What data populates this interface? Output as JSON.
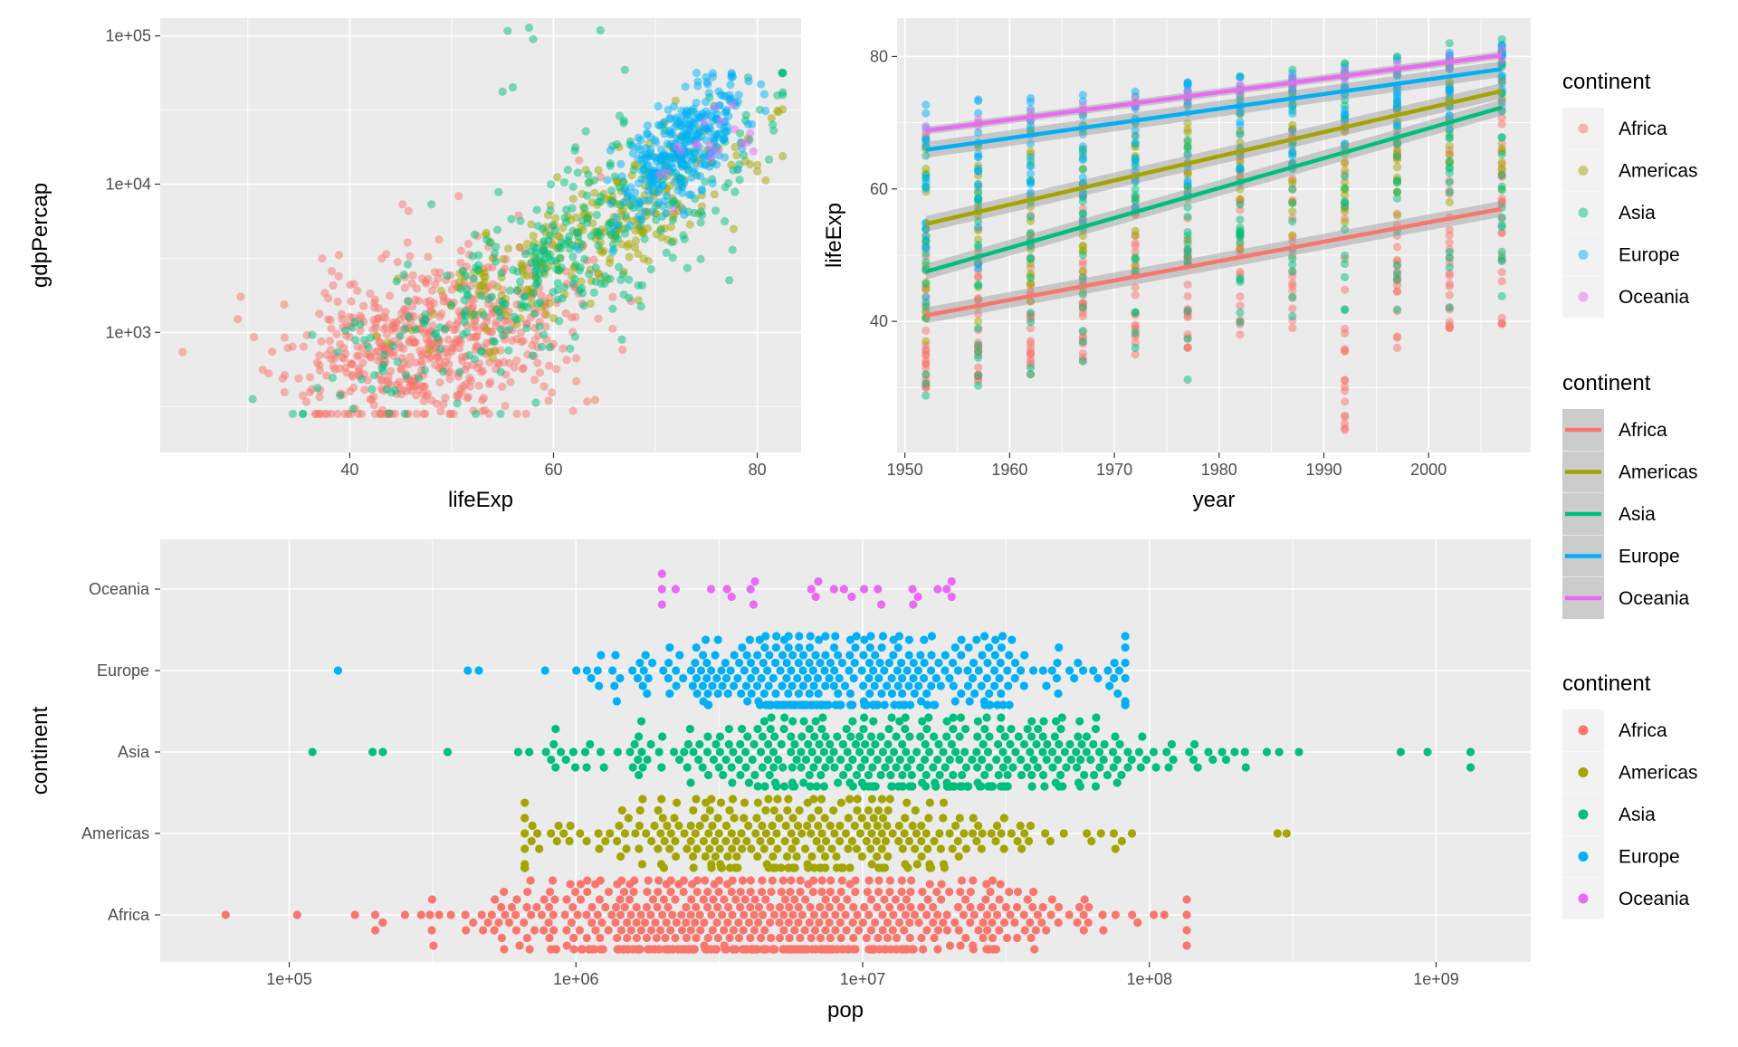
{
  "colors": {
    "Africa": "#F8766D",
    "Americas": "#A3A500",
    "Asia": "#00BF7D",
    "Europe": "#00B0F6",
    "Oceania": "#E76BF3",
    "panel_bg": "#EBEBEB",
    "grid": "#FFFFFF",
    "tick_text": "#4D4D4D"
  },
  "continents": [
    "Africa",
    "Americas",
    "Asia",
    "Europe",
    "Oceania"
  ],
  "legends": [
    {
      "title": "continent",
      "key": "point-alpha",
      "items": [
        "Africa",
        "Americas",
        "Asia",
        "Europe",
        "Oceania"
      ]
    },
    {
      "title": "continent",
      "key": "line",
      "items": [
        "Africa",
        "Americas",
        "Asia",
        "Europe",
        "Oceania"
      ]
    },
    {
      "title": "continent",
      "key": "point",
      "items": [
        "Africa",
        "Americas",
        "Asia",
        "Europe",
        "Oceania"
      ]
    }
  ],
  "chart_data": [
    {
      "type": "scatter",
      "xlabel": "lifeExp",
      "ylabel": "gdpPercap",
      "xlim": [
        21.4,
        84.3
      ],
      "ylim_log10": [
        2.19,
        5.12
      ],
      "y_scale": "log10",
      "x_ticks": [
        {
          "value": 40,
          "label": "40"
        },
        {
          "value": 60,
          "label": "60"
        },
        {
          "value": 80,
          "label": "80"
        }
      ],
      "y_ticks": [
        {
          "value": 1000,
          "label": "1e+03"
        },
        {
          "value": 10000,
          "label": "1e+04"
        },
        {
          "value": 100000,
          "label": "1e+05"
        }
      ],
      "grid": true,
      "point_alpha": 0.5,
      "series": [
        {
          "name": "Africa",
          "center_lifeExp": 48,
          "center_gdp_log10": 3.0,
          "n": 600
        },
        {
          "name": "Americas",
          "center_lifeExp": 64,
          "center_gdp_log10": 3.6,
          "n": 280
        },
        {
          "name": "Asia",
          "center_lifeExp": 60,
          "center_gdp_log10": 3.4,
          "n": 380
        },
        {
          "name": "Europe",
          "center_lifeExp": 72,
          "center_gdp_log10": 4.1,
          "n": 330
        },
        {
          "name": "Oceania",
          "center_lifeExp": 74,
          "center_gdp_log10": 4.2,
          "n": 20
        }
      ],
      "outliers": [
        {
          "continent": "Asia",
          "lifeExp": 55.5,
          "gdpPercap": 108000
        },
        {
          "continent": "Asia",
          "lifeExp": 57.6,
          "gdpPercap": 113500
        },
        {
          "continent": "Asia",
          "lifeExp": 58.0,
          "gdpPercap": 95000
        },
        {
          "continent": "Asia",
          "lifeExp": 64.6,
          "gdpPercap": 109000
        },
        {
          "continent": "Asia",
          "lifeExp": 67.0,
          "gdpPercap": 59000
        },
        {
          "continent": "Asia",
          "lifeExp": 56.0,
          "gdpPercap": 45000
        },
        {
          "continent": "Asia",
          "lifeExp": 55.0,
          "gdpPercap": 42000
        },
        {
          "continent": "Africa",
          "lifeExp": 23.6,
          "gdpPercap": 737
        }
      ]
    },
    {
      "type": "line",
      "xlabel": "year",
      "ylabel": "lifeExp",
      "xlim": [
        1949.25,
        2009.75
      ],
      "ylim": [
        20.2,
        85.8
      ],
      "x_ticks": [
        {
          "value": 1950,
          "label": "1950"
        },
        {
          "value": 1960,
          "label": "1960"
        },
        {
          "value": 1970,
          "label": "1970"
        },
        {
          "value": 1980,
          "label": "1980"
        },
        {
          "value": 1990,
          "label": "1990"
        },
        {
          "value": 2000,
          "label": "2000"
        }
      ],
      "y_ticks": [
        {
          "value": 40,
          "label": "40"
        },
        {
          "value": 60,
          "label": "60"
        },
        {
          "value": 80,
          "label": "80"
        }
      ],
      "x_points": [
        1952,
        1957,
        1962,
        1967,
        1972,
        1977,
        1982,
        1987,
        1992,
        1997,
        2002,
        2007
      ],
      "grid": true,
      "point_alpha": 0.5,
      "series": [
        {
          "name": "Africa",
          "fit": [
            [
              1952,
              40.9
            ],
            [
              2007,
              57.0
            ]
          ],
          "range": [
            [
              30,
              52
            ],
            [
              31,
              54
            ],
            [
              32,
              56
            ],
            [
              34,
              59
            ],
            [
              35,
              62
            ],
            [
              36,
              64
            ],
            [
              38,
              66
            ],
            [
              39,
              69
            ],
            [
              23.6,
              70
            ],
            [
              36,
              72
            ],
            [
              39,
              75
            ],
            [
              39.6,
              76.4
            ]
          ]
        },
        {
          "name": "Americas",
          "fit": [
            [
              1952,
              54.7
            ],
            [
              2007,
              74.8
            ]
          ],
          "range": [
            [
              37,
              68
            ],
            [
              40,
              70
            ],
            [
              43,
              71
            ],
            [
              45,
              72
            ],
            [
              47,
              73
            ],
            [
              49,
              74
            ],
            [
              51,
              75
            ],
            [
              53,
              76
            ],
            [
              55,
              77
            ],
            [
              56,
              78
            ],
            [
              58,
              79
            ],
            [
              60,
              80.6
            ]
          ]
        },
        {
          "name": "Asia",
          "fit": [
            [
              1952,
              47.5
            ],
            [
              2007,
              72.3
            ]
          ],
          "range": [
            [
              28.8,
              65
            ],
            [
              30.3,
              67
            ],
            [
              32,
              69
            ],
            [
              34,
              71
            ],
            [
              36,
              74
            ],
            [
              31.2,
              76
            ],
            [
              39.9,
              77
            ],
            [
              40.8,
              78
            ],
            [
              41.7,
              79
            ],
            [
              41.8,
              80
            ],
            [
              42.1,
              82
            ],
            [
              43.8,
              82.6
            ]
          ]
        },
        {
          "name": "Europe",
          "fit": [
            [
              1952,
              65.9
            ],
            [
              2007,
              78.1
            ]
          ],
          "range": [
            [
              43.6,
              72.7
            ],
            [
              48,
              73.5
            ],
            [
              52,
              73.7
            ],
            [
              54,
              74.2
            ],
            [
              57,
              74.7
            ],
            [
              59,
              76.1
            ],
            [
              61,
              76.9
            ],
            [
              63,
              77.4
            ],
            [
              66,
              78.3
            ],
            [
              68,
              79.4
            ],
            [
              69,
              80.6
            ],
            [
              71.8,
              81.8
            ]
          ]
        },
        {
          "name": "Oceania",
          "fit": [
            [
              1952,
              68.8
            ],
            [
              2007,
              80.2
            ]
          ]
        }
      ]
    },
    {
      "type": "beeswarm",
      "xlabel": "pop",
      "ylabel": "continent",
      "x_scale": "log10",
      "xlim_log10": [
        4.55,
        9.33
      ],
      "categories": [
        "Africa",
        "Americas",
        "Asia",
        "Europe",
        "Oceania"
      ],
      "x_ticks": [
        {
          "value": 100000,
          "label": "1e+05"
        },
        {
          "value": 1000000,
          "label": "1e+06"
        },
        {
          "value": 10000000,
          "label": "1e+07"
        },
        {
          "value": 100000000,
          "label": "1e+08"
        },
        {
          "value": 1000000000,
          "label": "1e+09"
        }
      ],
      "grid": true,
      "series": [
        {
          "name": "Africa",
          "pop_range": [
            60011,
            135031164
          ],
          "median_pop": 4579311,
          "n": 624
        },
        {
          "name": "Americas",
          "pop_range": [
            662850,
            301139947
          ],
          "median_pop": 6227510,
          "n": 300
        },
        {
          "name": "Asia",
          "pop_range": [
            120447,
            1318683096
          ],
          "median_pop": 14530831,
          "n": 396
        },
        {
          "name": "Europe",
          "pop_range": [
            147962,
            82400996
          ],
          "median_pop": 8551125,
          "n": 360
        },
        {
          "name": "Oceania",
          "pop_range": [
            1994794,
            20434176
          ],
          "median_pop": 6403492,
          "n": 24
        }
      ]
    }
  ]
}
